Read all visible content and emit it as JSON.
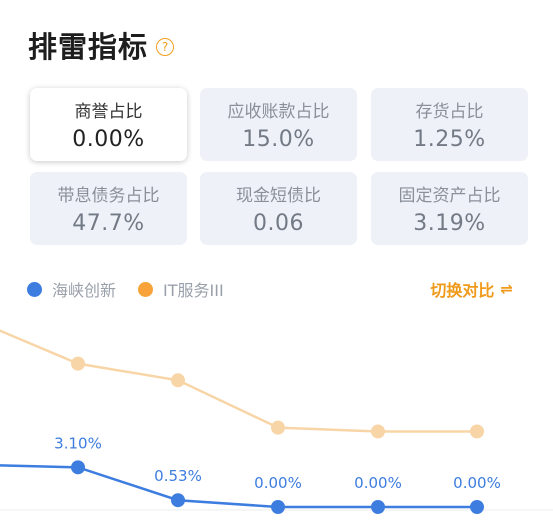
{
  "header": {
    "title": "排雷指标",
    "help_icon": "question-circle-icon"
  },
  "metrics": [
    {
      "label": "商誉占比",
      "value": "0.00%",
      "active": true
    },
    {
      "label": "应收账款占比",
      "value": "15.0%",
      "active": false
    },
    {
      "label": "存货占比",
      "value": "1.25%",
      "active": false
    },
    {
      "label": "带息债务占比",
      "value": "47.7%",
      "active": false
    },
    {
      "label": "现金短债比",
      "value": "0.06",
      "active": false
    },
    {
      "label": "固定资产占比",
      "value": "3.19%",
      "active": false
    }
  ],
  "legend": {
    "company": {
      "label": "海峡创新",
      "color": "#3d7ddf"
    },
    "industry": {
      "label": "IT服务III",
      "color": "#f8a33a"
    }
  },
  "switch_label": "切换对比",
  "switch_icon": "swap-icon",
  "chart_data": {
    "type": "line",
    "series": [
      {
        "name": "海峡创新",
        "color": "#3d7ddf",
        "values": [
          3.3,
          3.1,
          0.53,
          0.0,
          0.0,
          0.0
        ],
        "labels": [
          "",
          "3.10%",
          "0.53%",
          "0.00%",
          "0.00%",
          "0.00%"
        ]
      },
      {
        "name": "IT服务III",
        "color": "#f8d5a6",
        "values": [
          14.5,
          11.2,
          9.9,
          6.2,
          5.9,
          5.9
        ]
      }
    ]
  }
}
